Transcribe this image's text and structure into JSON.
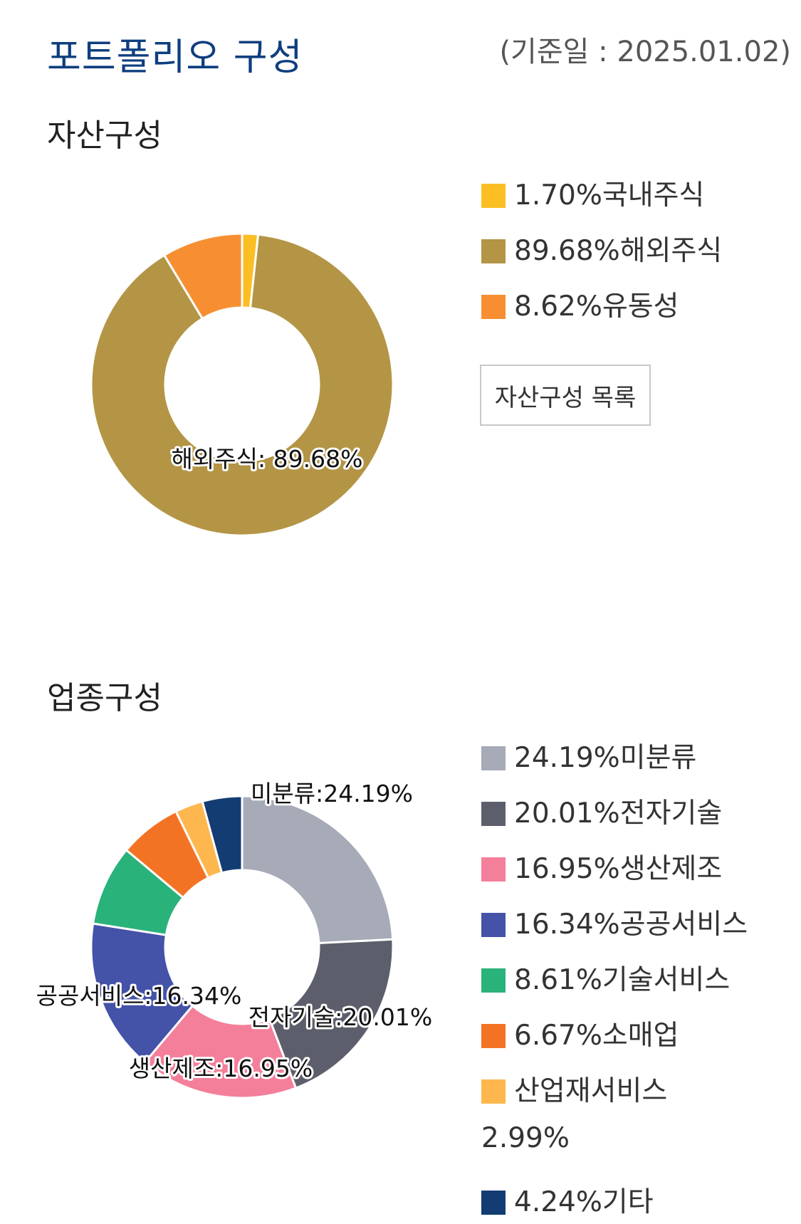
{
  "header": {
    "title": "포트폴리오 구성",
    "base_date": "(기준일 : 2025.01.02)"
  },
  "asset": {
    "section_title": "자산구성",
    "list_button_label": "자산구성 목록"
  },
  "industry": {
    "section_title": "업종구성"
  },
  "chart_data": [
    {
      "type": "pie",
      "categories": [
        "국내주식",
        "해외주식",
        "유동성"
      ],
      "values": [
        1.7,
        89.68,
        8.62
      ],
      "colors": [
        "#fbbf24",
        "#b39545",
        "#f78f32"
      ],
      "legend": [
        "1.70%국내주식",
        "89.68%해외주식",
        "8.62%유동성"
      ],
      "data_labels": [
        {
          "index": 1,
          "text": "해외주식: 89.68%"
        }
      ],
      "donut": true,
      "legend_position": "right"
    },
    {
      "type": "pie",
      "categories": [
        "미분류",
        "전자기술",
        "생산제조",
        "공공서비스",
        "기술서비스",
        "소매업",
        "산업재서비스",
        "기타"
      ],
      "values": [
        24.19,
        20.01,
        16.95,
        16.34,
        8.61,
        6.67,
        2.99,
        4.24
      ],
      "colors": [
        "#a7aab7",
        "#5c5f6b",
        "#f47f9a",
        "#4452a8",
        "#2ab27b",
        "#f37325",
        "#fdb74e",
        "#133c72"
      ],
      "legend": [
        "24.19%미분류",
        "20.01%전자기술",
        "16.95%생산제조",
        "16.34%공공서비스",
        "8.61%기술서비스",
        "6.67%소매업",
        "산업재서비스",
        "4.24%기타"
      ],
      "legend_extra": "2.99%",
      "data_labels": [
        {
          "index": 0,
          "text": "미분류:24.19%"
        },
        {
          "index": 1,
          "text": "전자기술:20.01%"
        },
        {
          "index": 2,
          "text": "생산제조:16.95%"
        },
        {
          "index": 3,
          "text": "공공서비스:16.34%"
        }
      ],
      "donut": true,
      "legend_position": "right"
    }
  ]
}
